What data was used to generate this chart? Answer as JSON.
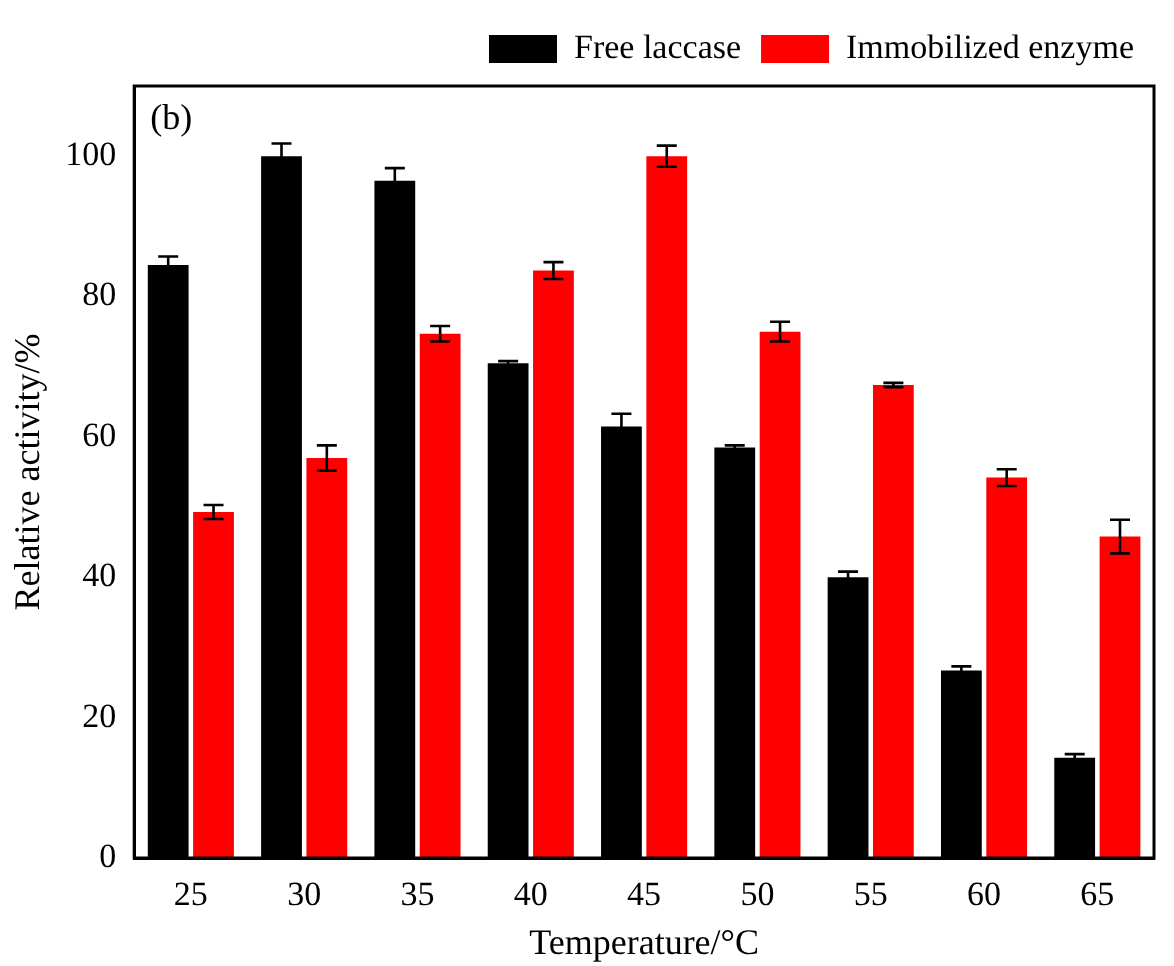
{
  "chart_data": {
    "type": "bar",
    "xlabel": "Temperature/°C",
    "ylabel": "Relative activity/%",
    "annotations": [
      "(b)"
    ],
    "categories": [
      "25",
      "30",
      "35",
      "40",
      "45",
      "50",
      "55",
      "60",
      "65"
    ],
    "series": [
      {
        "name": "Free laccase",
        "color": "#000000",
        "values": [
          84.5,
          100,
          96.5,
          70.5,
          61.5,
          58.5,
          40,
          26.7,
          14.3
        ],
        "errors": [
          1.2,
          1.8,
          1.8,
          0.3,
          1.8,
          0.3,
          0.8,
          0.6,
          0.5
        ]
      },
      {
        "name": "Immobilized enzyme",
        "color": "#ff0000",
        "values": [
          49.3,
          57,
          74.7,
          83.7,
          100,
          75,
          67.4,
          54.2,
          45.8
        ],
        "errors": [
          1,
          1.8,
          1.1,
          1.2,
          1.5,
          1.4,
          0.3,
          1.2,
          2.4
        ]
      }
    ],
    "ylim": [
      0,
      110
    ],
    "yticks": [
      0,
      20,
      40,
      60,
      80,
      100
    ],
    "grid": false,
    "legend": "top right"
  }
}
